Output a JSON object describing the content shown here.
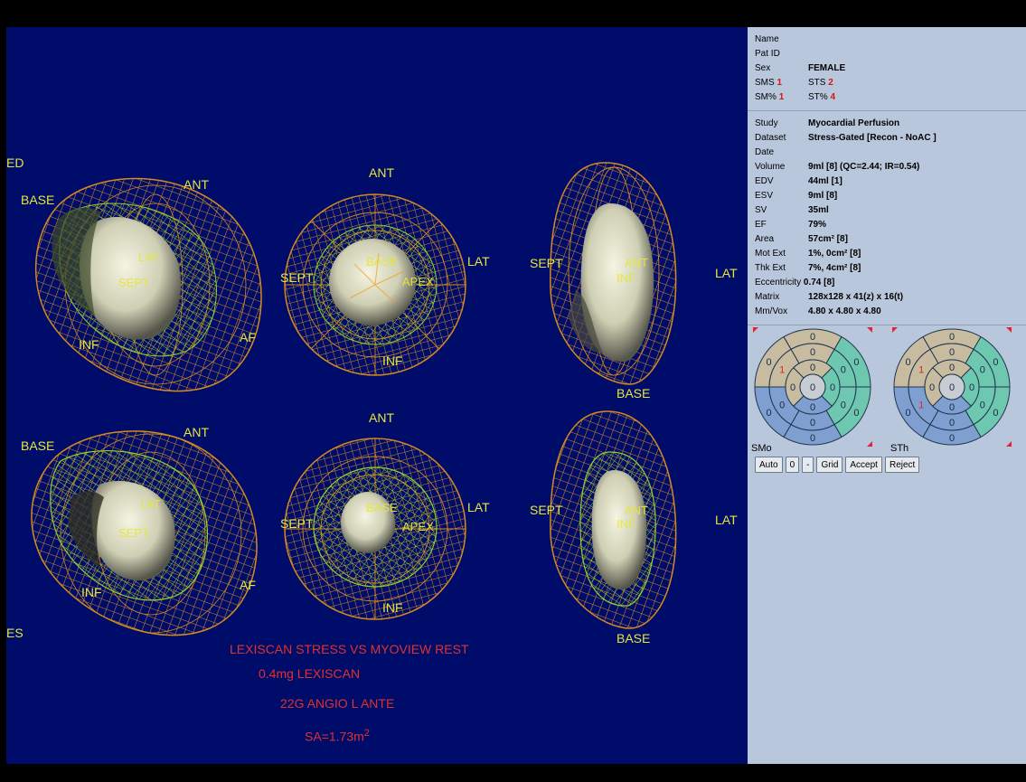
{
  "viewport": {
    "phase_labels": {
      "ed": "ED",
      "es": "ES"
    },
    "top_row": {
      "view1": {
        "base": "BASE",
        "ant": "ANT",
        "lat": "LAT",
        "sept": "SEPT",
        "inf": "INF",
        "af": "AF"
      },
      "view2": {
        "ant": "ANT",
        "sept": "SEPT",
        "base": "BASE",
        "apex": "APEX",
        "lat": "LAT",
        "inf": "INF"
      },
      "view3": {
        "sept": "SEPT",
        "ant": "ANT",
        "inf": "INF",
        "lat": "LAT",
        "base": "BASE"
      }
    },
    "bottom_row": {
      "view1": {
        "base": "BASE",
        "ant": "ANT",
        "lat": "LAT",
        "sept": "SEPT",
        "inf": "INF",
        "af": "AF"
      },
      "view2": {
        "ant": "ANT",
        "sept": "SEPT",
        "base": "BASE",
        "apex": "APEX",
        "lat": "LAT",
        "inf": "INF"
      },
      "view3": {
        "sept": "SEPT",
        "ant": "ANT",
        "inf": "INF",
        "lat": "LAT",
        "base": "BASE"
      }
    },
    "annotations": {
      "line1": "LEXISCAN STRESS VS MYOVIEW REST",
      "line2": "0.4mg LEXISCAN",
      "line3": "22G ANGIO L ANTE",
      "line4": "SA=1.73m",
      "line4_sup": "2"
    },
    "colors": {
      "background": "#000c6a",
      "mesh": "#d48a1e",
      "inner_mesh": "#8fd12e",
      "label": "#e6e63c",
      "annotation": "#e0312c"
    }
  },
  "patient": {
    "name_label": "Name",
    "name_value": "",
    "patid_label": "Pat ID",
    "patid_value": "",
    "sex_label": "Sex",
    "sex_value": "FEMALE",
    "sms_label": "SMS",
    "sms_value": "1",
    "sts_label": "STS",
    "sts_value": "2",
    "smp_label": "SM%",
    "smp_value": "1",
    "stp_label": "ST%",
    "stp_value": "4"
  },
  "study": {
    "study_label": "Study",
    "study_value": "Myocardial Perfusion",
    "dataset_label": "Dataset",
    "dataset_value": "Stress-Gated [Recon - NoAC ]",
    "date_label": "Date",
    "date_value": "",
    "volume_label": "Volume",
    "volume_value": "9ml [8] (QC=2.44; IR=0.54)",
    "edv_label": "EDV",
    "edv_value": "44ml [1]",
    "esv_label": "ESV",
    "esv_value": "9ml [8]",
    "sv_label": "SV",
    "sv_value": "35ml",
    "ef_label": "EF",
    "ef_value": "79%",
    "area_label": "Area",
    "area_value": "57cm² [8]",
    "motext_label": "Mot Ext",
    "motext_value": "1%, 0cm² [8]",
    "thkext_label": "Thk Ext",
    "thkext_value": "7%, 4cm² [8]",
    "ecc_label": "Eccentricity",
    "ecc_value": "0.74 [8]",
    "matrix_label": "Matrix",
    "matrix_value": "128x128 x 41(z) x 16(t)",
    "mmvox_label": "Mm/Vox",
    "mmvox_value": "4.80 x 4.80 x 4.80"
  },
  "bullseyes": {
    "left_label": "SMo",
    "right_label": "STh",
    "left": {
      "outer": [
        "0",
        "0",
        "0",
        "0",
        "0",
        "0"
      ],
      "mid": [
        "0",
        "0",
        "0",
        "0",
        "0",
        "1"
      ],
      "inner": [
        "0",
        "0",
        "0",
        "0"
      ],
      "apex": "0"
    },
    "right": {
      "outer": [
        "0",
        "0",
        "0",
        "0",
        "0",
        "0"
      ],
      "mid": [
        "0",
        "0",
        "0",
        "0",
        "1",
        "1"
      ],
      "inner": [
        "0",
        "0",
        "0",
        "0"
      ],
      "apex": "0"
    },
    "colors": {
      "tan": "#c8bca0",
      "blue": "#7f9fd0",
      "teal": "#6ec8b0",
      "marker": "#e8203a",
      "bad": "#d82828"
    }
  },
  "buttons": {
    "auto": "Auto",
    "zero": "0",
    "minus": "-",
    "grid": "Grid",
    "accept": "Accept",
    "reject": "Reject"
  }
}
